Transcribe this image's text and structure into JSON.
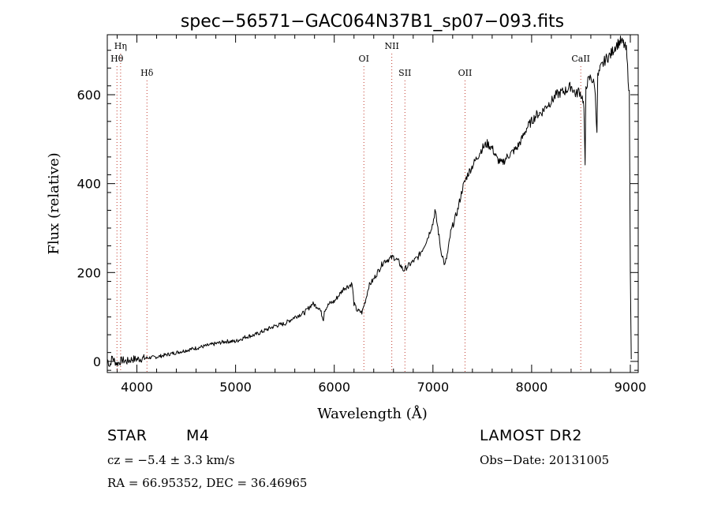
{
  "chart_data": {
    "type": "line",
    "title": "spec−56571−GAC064N37B1_sp07−093.fits",
    "xlabel": "Wavelength (Å)",
    "ylabel": "Flux (relative)",
    "xlim": [
      3700,
      9080
    ],
    "ylim": [
      -25,
      735
    ],
    "xticks": [
      4000,
      5000,
      6000,
      7000,
      8000,
      9000
    ],
    "yticks": [
      0,
      200,
      400,
      600
    ],
    "grid": false,
    "line_color": "#000000",
    "marker_color": "#c0392b",
    "series": [
      {
        "x": [
          3700,
          3725,
          3750,
          3775,
          3800,
          3850,
          3900,
          3950,
          4000,
          4100,
          4200,
          4300,
          4400,
          4500,
          4600,
          4700,
          4800,
          4900,
          5000,
          5100,
          5200,
          5300,
          5400,
          5500,
          5600,
          5700,
          5780,
          5850,
          5890,
          5900,
          5950,
          6000,
          6050,
          6100,
          6150,
          6180,
          6200,
          6230,
          6280,
          6320,
          6350,
          6400,
          6450,
          6500,
          6550,
          6600,
          6650,
          6700,
          6750,
          6800,
          6850,
          6900,
          6950,
          6980,
          7000,
          7020,
          7050,
          7080,
          7100,
          7120,
          7150,
          7180,
          7200,
          7250,
          7300,
          7350,
          7400,
          7450,
          7500,
          7550,
          7600,
          7650,
          7700,
          7750,
          7800,
          7850,
          7900,
          7950,
          8000,
          8050,
          8100,
          8150,
          8200,
          8250,
          8300,
          8350,
          8400,
          8450,
          8480,
          8500,
          8520,
          8530,
          8542,
          8550,
          8570,
          8600,
          8620,
          8640,
          8662,
          8670,
          8700,
          8750,
          8800,
          8850,
          8900,
          8930,
          8960,
          8990,
          9000,
          9010
        ],
        "y": [
          5,
          -10,
          10,
          0,
          -5,
          3,
          0,
          5,
          5,
          8,
          10,
          15,
          20,
          25,
          30,
          35,
          40,
          45,
          45,
          55,
          60,
          70,
          80,
          85,
          100,
          110,
          130,
          120,
          95,
          115,
          130,
          135,
          150,
          165,
          170,
          175,
          130,
          115,
          110,
          140,
          170,
          185,
          205,
          225,
          230,
          235,
          225,
          205,
          215,
          225,
          235,
          255,
          280,
          300,
          310,
          340,
          300,
          250,
          235,
          215,
          245,
          290,
          305,
          340,
          390,
          420,
          440,
          460,
          480,
          490,
          480,
          455,
          445,
          460,
          470,
          480,
          500,
          525,
          540,
          555,
          560,
          575,
          585,
          600,
          605,
          610,
          620,
          600,
          610,
          600,
          590,
          570,
          435,
          620,
          630,
          640,
          630,
          620,
          520,
          640,
          660,
          680,
          690,
          710,
          720,
          715,
          700,
          600,
          200,
          5
        ]
      }
    ],
    "lines": [
      {
        "label": "Hη",
        "x": 3835,
        "level": 1
      },
      {
        "label": "Hθ",
        "x": 3798,
        "level": 2
      },
      {
        "label": "Hδ",
        "x": 4102,
        "level": 3
      },
      {
        "label": "OI",
        "x": 6300,
        "level": 2
      },
      {
        "label": "NII",
        "x": 6583,
        "level": 1
      },
      {
        "label": "SII",
        "x": 6716,
        "level": 3
      },
      {
        "label": "OII",
        "x": 7325,
        "level": 3
      },
      {
        "label": "CaII",
        "x": 8498,
        "level": 2
      }
    ]
  },
  "info": {
    "object_class": "STAR",
    "subclass": "M4",
    "cz": "cz = −5.4 ± 3.3 km/s",
    "coords": "RA =   66.95352, DEC =   36.46965",
    "survey": "LAMOST  DR2",
    "obs_date": "Obs−Date: 20131005"
  }
}
